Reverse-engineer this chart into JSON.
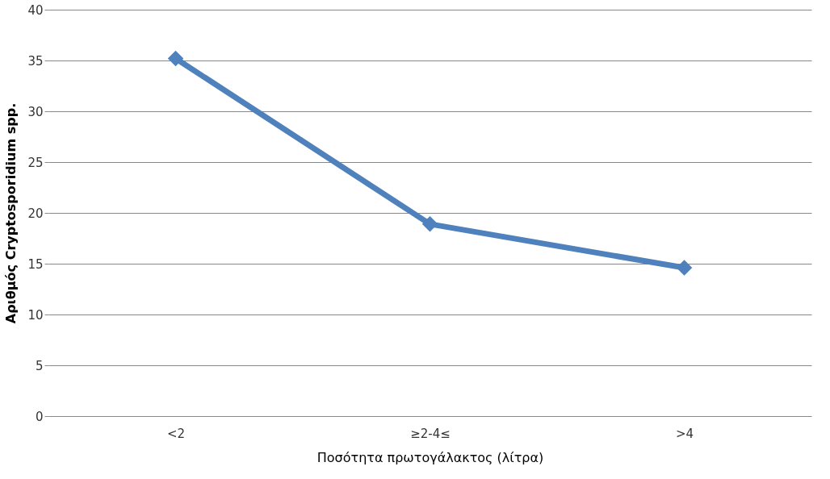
{
  "chart_data": {
    "type": "line",
    "xlabel": "Ποσότητα πρωτογάλακτος (λίτρα)",
    "ylabel": "Αριθμός Cryptosporidium spp.",
    "categories": [
      "<2",
      "≥2-4≤",
      ">4"
    ],
    "series": [
      {
        "color": "#4f81bd",
        "values": [
          35.2,
          18.9,
          14.6
        ]
      }
    ],
    "ylim": [
      0,
      40
    ],
    "yticks": [
      0,
      5,
      10,
      15,
      20,
      25,
      30,
      35,
      40
    ],
    "grid": "y",
    "marker": "diamond",
    "line_style": "solid"
  }
}
